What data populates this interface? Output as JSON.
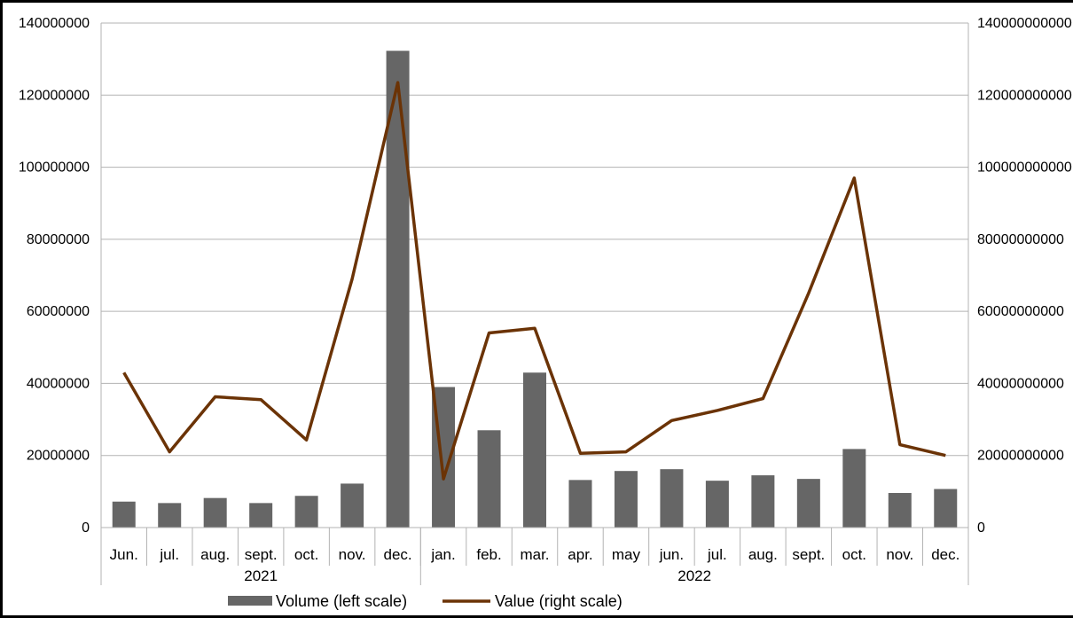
{
  "chart_data": {
    "type": "bar",
    "title": "",
    "groups": [
      {
        "label": "2021",
        "categories": [
          "Jun.",
          "jul.",
          "aug.",
          "sept.",
          "oct.",
          "nov.",
          "dec."
        ]
      },
      {
        "label": "2022",
        "categories": [
          "jan.",
          "feb.",
          "mar.",
          "apr.",
          "may",
          "jun.",
          "jul.",
          "aug.",
          "sept.",
          "oct.",
          "nov.",
          "dec."
        ]
      }
    ],
    "categories": [
      "Jun.",
      "jul.",
      "aug.",
      "sept.",
      "oct.",
      "nov.",
      "dec.",
      "jan.",
      "feb.",
      "mar.",
      "apr.",
      "may",
      "jun.",
      "jul.",
      "aug.",
      "sept.",
      "oct.",
      "nov.",
      "dec."
    ],
    "series": [
      {
        "name": "Volume (left scale)",
        "type": "bar",
        "axis": "left",
        "color": "#666666",
        "values": [
          7200000,
          6800000,
          8200000,
          6800000,
          8800000,
          12200000,
          132300000,
          39000000,
          27000000,
          43000000,
          13200000,
          15700000,
          16200000,
          13000000,
          14500000,
          13500000,
          21800000,
          9600000,
          10700000
        ]
      },
      {
        "name": "Value (right scale)",
        "type": "line",
        "axis": "right",
        "color": "#6b3306",
        "values": [
          43000000000,
          21000000000,
          36300000000,
          35500000000,
          24300000000,
          69000000000,
          123500000000,
          13500000000,
          54000000000,
          55300000000,
          20600000000,
          21000000000,
          29700000000,
          32500000000,
          35800000000,
          65000000000,
          97000000000,
          23000000000,
          20000000000
        ]
      }
    ],
    "y_left": {
      "range": [
        0,
        140000000
      ],
      "ticks": [
        "0",
        "20000000",
        "40000000",
        "60000000",
        "80000000",
        "100000000",
        "120000000",
        "140000000"
      ]
    },
    "y_right": {
      "range": [
        0,
        140000000000
      ],
      "ticks": [
        "0",
        "20000000000",
        "40000000000",
        "60000000000",
        "80000000000",
        "100000000000",
        "120000000000",
        "140000000000"
      ]
    },
    "grid": true,
    "legend": "bottom"
  }
}
